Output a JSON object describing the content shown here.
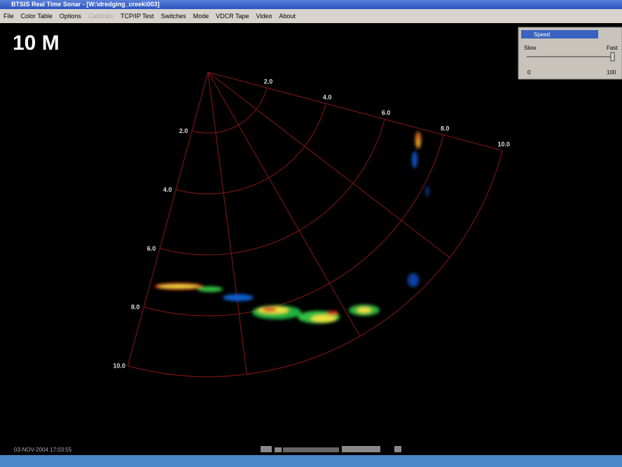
{
  "window": {
    "title": "BTSIS Real Time Sonar - [W:\\dredging_creek\\003]"
  },
  "menu": [
    "File",
    "Color Table",
    "Options",
    "Calibrate",
    "TCP/IP Test",
    "Switches",
    "Mode",
    "VDCR Tape",
    "Video",
    "About"
  ],
  "display": {
    "range": "10 M",
    "top_ring_labels": [
      "2.0",
      "4.0",
      "6.0",
      "8.0",
      "10.0"
    ],
    "left_ring_labels": [
      "2.0",
      "4.0",
      "6.0",
      "8.0",
      "10.0"
    ]
  },
  "speed_panel": {
    "title": "Speed",
    "min_label": "Slow",
    "max_label": "Fast",
    "min_value": "0",
    "max_value": "100"
  },
  "status": {
    "timestamp": "03-NOV-2004 17:03:55"
  }
}
